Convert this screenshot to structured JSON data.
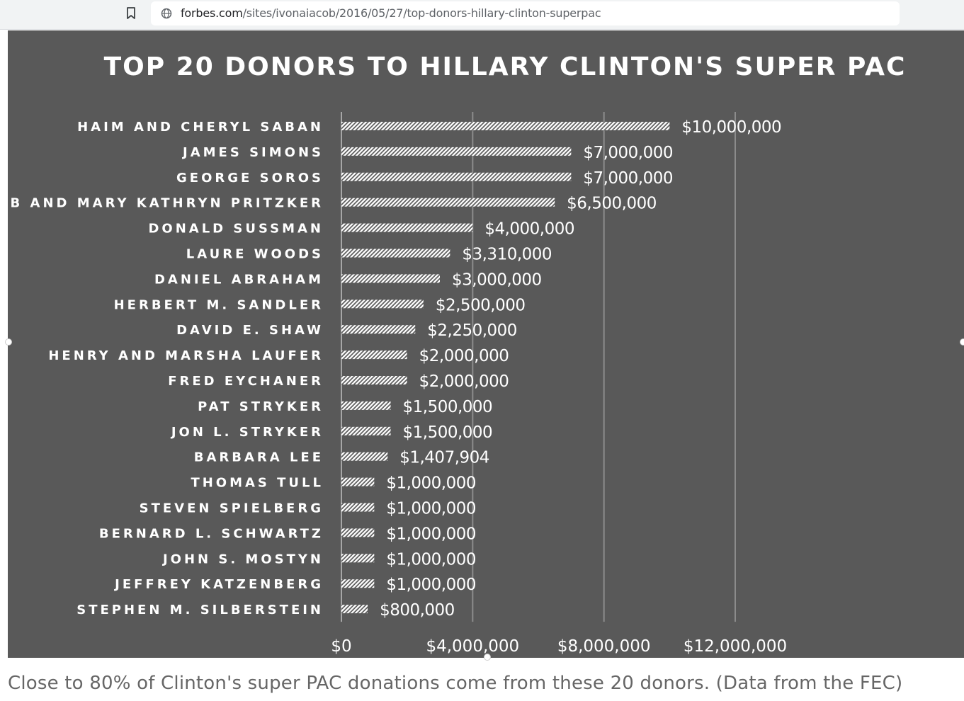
{
  "browser": {
    "url_domain": "forbes.com",
    "url_path": "/sites/ivonaiacob/2016/05/27/top-donors-hillary-clinton-superpac"
  },
  "chart_data": {
    "type": "bar",
    "orientation": "horizontal",
    "title": "TOP 20 DONORS TO HILLARY CLINTON'S SUPER PAC",
    "categories": [
      "HAIM AND CHERYL SABAN",
      "JAMES SIMONS",
      "GEORGE SOROS",
      "JB AND MARY KATHRYN PRITZKER",
      "DONALD SUSSMAN",
      "LAURE WOODS",
      "DANIEL ABRAHAM",
      "HERBERT M. SANDLER",
      "DAVID E. SHAW",
      "HENRY AND MARSHA LAUFER",
      "FRED EYCHANER",
      "PAT STRYKER",
      "JON L. STRYKER",
      "BARBARA LEE",
      "THOMAS TULL",
      "STEVEN SPIELBERG",
      "BERNARD L. SCHWARTZ",
      "JOHN S. MOSTYN",
      "JEFFREY KATZENBERG",
      "STEPHEN M. SILBERSTEIN"
    ],
    "values": [
      10000000,
      7000000,
      7000000,
      6500000,
      4000000,
      3310000,
      3000000,
      2500000,
      2250000,
      2000000,
      2000000,
      1500000,
      1500000,
      1407904,
      1000000,
      1000000,
      1000000,
      1000000,
      1000000,
      800000
    ],
    "data_labels": [
      "$10,000,000",
      "$7,000,000",
      "$7,000,000",
      "$6,500,000",
      "$4,000,000",
      "$3,310,000",
      "$3,000,000",
      "$2,500,000",
      "$2,250,000",
      "$2,000,000",
      "$2,000,000",
      "$1,500,000",
      "$1,500,000",
      "$1,407,904",
      "$1,000,000",
      "$1,000,000",
      "$1,000,000",
      "$1,000,000",
      "$1,000,000",
      "$800,000"
    ],
    "xlim": [
      0,
      12000000
    ],
    "x_ticks": [
      0,
      4000000,
      8000000,
      12000000
    ],
    "x_tick_labels": [
      "$0",
      "$4,000,000",
      "$8,000,000",
      "$12,000,000"
    ],
    "grid": true,
    "colors": {
      "background": "#595959",
      "bar": "#ffffff",
      "text": "#ffffff",
      "grid": "#8c8c8c"
    }
  },
  "caption": "Close to 80% of Clinton's super PAC donations come from these 20 donors. (Data from the FEC)"
}
